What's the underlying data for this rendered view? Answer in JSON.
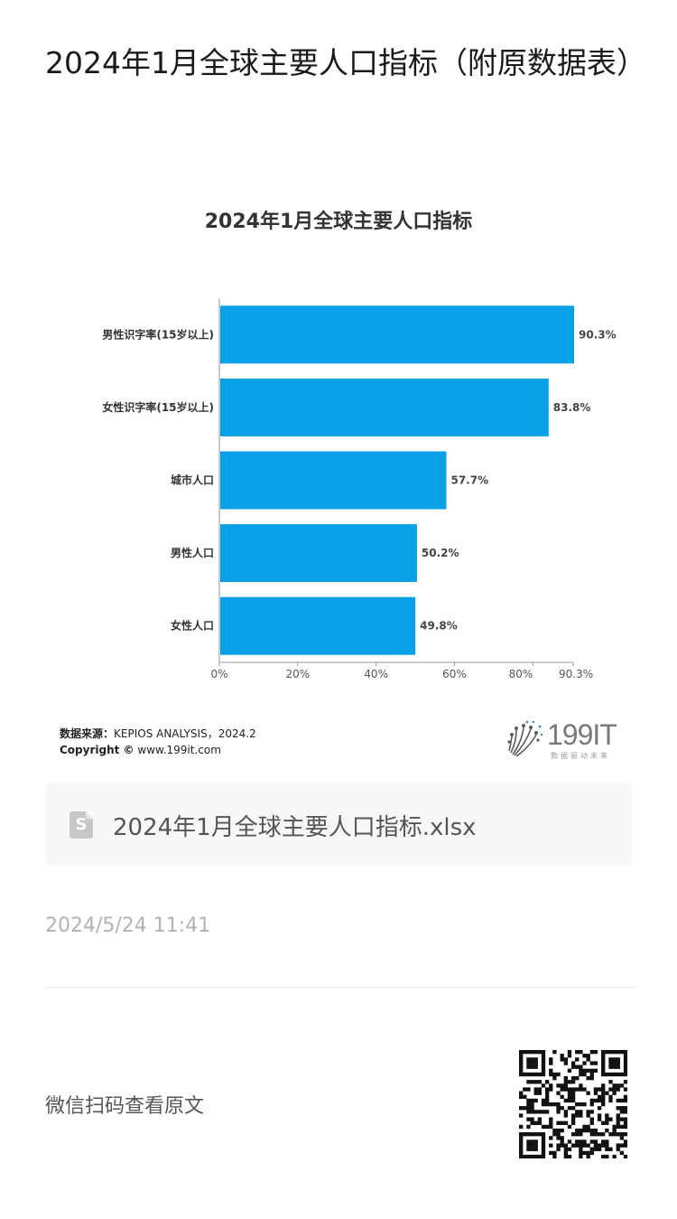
{
  "article": {
    "title": "2024年1月全球主要人口指标（附原数据表）"
  },
  "chart_data": {
    "type": "bar",
    "orientation": "horizontal",
    "title": "2024年1月全球主要人口指标",
    "categories": [
      "男性识字率(15岁以上)",
      "女性识字率(15岁以上)",
      "城市人口",
      "男性人口",
      "女性人口"
    ],
    "values": [
      90.3,
      83.8,
      57.7,
      50.2,
      49.8
    ],
    "value_labels": [
      "90.3%",
      "83.8%",
      "57.7%",
      "50.2%",
      "49.8%"
    ],
    "x_ticks": [
      "0%",
      "20%",
      "40%",
      "60%",
      "80%",
      "90.3%"
    ],
    "x_tick_values": [
      0,
      20,
      40,
      60,
      80,
      90.3
    ],
    "xlim": [
      0,
      90.3
    ],
    "bar_color": "#0aa0e8",
    "grid": false,
    "legend": "none"
  },
  "source": {
    "label": "数据来源：",
    "value": "KEPIOS ANALYSIS，2024.2",
    "copyright_label": "Copyright ©",
    "copyright_value": "www.199it.com"
  },
  "logo": {
    "number": "199IT",
    "tagline": "数据驱动未来"
  },
  "attachment": {
    "icon": "spreadsheet-file-icon",
    "icon_letter": "S",
    "filename": "2024年1月全球主要人口指标.xlsx"
  },
  "post_date": "2024/5/24 11:41",
  "qr_hint": "微信扫码查看原文",
  "colors": {
    "accent": "#0aa0e8",
    "muted_text": "#b2b2b2",
    "card_bg": "#f7f7f7"
  }
}
